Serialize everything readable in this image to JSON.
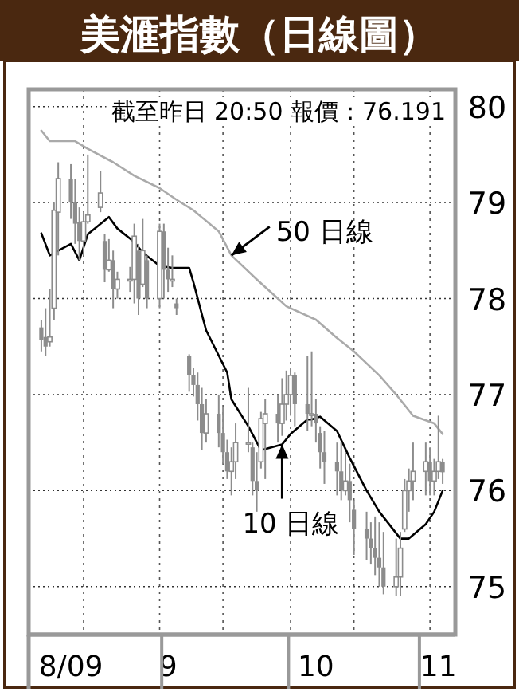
{
  "chart_data": {
    "type": "candlestick",
    "title": "美滙指數（日線圖）",
    "color": "#8c8c8c",
    "x": [
      "--08-03",
      "--08-04",
      "--08-05",
      "--08-06",
      "--08-07",
      "--08-10",
      "--08-11",
      "--08-12",
      "--08-13",
      "--08-14",
      "--08-17",
      "--08-18",
      "--08-19",
      "--08-20",
      "--08-21",
      "--08-24",
      "--08-25",
      "--08-26",
      "--08-27",
      "--08-28",
      "--08-31",
      "--09-01",
      "--09-02",
      "--09-03",
      "--09-04",
      "--09-07",
      "--09-08",
      "--09-09",
      "--09-10",
      "--09-11",
      "--09-14",
      "--09-15",
      "--09-16",
      "--09-17",
      "--09-18",
      "--09-21",
      "--09-22",
      "--09-23",
      "--09-24",
      "--09-25",
      "--09-28",
      "--09-29",
      "--09-30",
      "--10-01",
      "--10-02",
      "--10-05",
      "--10-06",
      "--10-07",
      "--10-08",
      "--10-09",
      "--10-12",
      "--10-13",
      "--10-14",
      "--10-15",
      "--10-16",
      "--10-19",
      "--10-20",
      "--10-21",
      "--10-22",
      "--10-23",
      "--10-26",
      "--10-27",
      "--10-28",
      "--10-29",
      "--10-30",
      "--11-02",
      "--11-03",
      "--11-04",
      "--11-05",
      "--11-06"
    ],
    "ohlc": [
      [
        77.7,
        77.78,
        77.45,
        77.57
      ],
      [
        77.6,
        77.9,
        77.4,
        77.5
      ],
      [
        77.55,
        78.1,
        77.5,
        77.6
      ],
      [
        77.9,
        79.0,
        77.78,
        78.92
      ],
      [
        78.9,
        79.42,
        78.45,
        79.25
      ],
      [
        79.25,
        79.4,
        78.83,
        79.0
      ],
      [
        79.0,
        79.25,
        78.57,
        78.78
      ],
      [
        78.8,
        78.95,
        78.4,
        78.6
      ],
      [
        78.6,
        78.9,
        78.45,
        78.8
      ],
      [
        78.8,
        79.5,
        78.78,
        78.87
      ],
      [
        78.95,
        79.33,
        78.9,
        79.1
      ],
      [
        78.6,
        78.67,
        78.17,
        78.3
      ],
      [
        78.3,
        78.62,
        78.28,
        78.4
      ],
      [
        78.4,
        78.5,
        77.9,
        78.1
      ],
      [
        78.1,
        78.28,
        78.0,
        78.2
      ],
      [
        78.2,
        78.33,
        78.07,
        78.2
      ],
      [
        78.2,
        78.78,
        77.95,
        78.65
      ],
      [
        78.5,
        78.57,
        77.83,
        78.0
      ],
      [
        78.15,
        78.83,
        78.12,
        78.5
      ],
      [
        78.4,
        78.45,
        77.9,
        78.0
      ],
      [
        78.0,
        78.78,
        77.9,
        78.7
      ],
      [
        78.7,
        78.78,
        78.0,
        78.3
      ],
      [
        78.3,
        78.53,
        78.07,
        78.2
      ],
      [
        78.2,
        78.45,
        78.12,
        78.2
      ],
      [
        77.95,
        78.0,
        77.83,
        77.9
      ],
      [
        77.4,
        77.42,
        77.03,
        77.2
      ],
      [
        77.2,
        77.28,
        76.98,
        77.1
      ],
      [
        77.1,
        77.23,
        76.73,
        76.9
      ],
      [
        76.9,
        77.07,
        76.42,
        76.6
      ],
      [
        76.6,
        76.95,
        76.5,
        76.8
      ],
      [
        76.8,
        77.0,
        76.45,
        76.6
      ],
      [
        76.6,
        76.87,
        76.28,
        76.4
      ],
      [
        76.4,
        76.53,
        76.12,
        76.2
      ],
      [
        76.2,
        76.45,
        75.95,
        76.3
      ],
      [
        76.3,
        76.7,
        76.12,
        76.5
      ],
      [
        76.5,
        77.07,
        76.4,
        76.5
      ],
      [
        76.45,
        76.5,
        75.95,
        76.1
      ],
      [
        76.1,
        76.4,
        75.78,
        76.0
      ],
      [
        76.3,
        76.82,
        76.23,
        76.75
      ],
      [
        76.7,
        76.95,
        76.12,
        76.8
      ],
      [
        76.8,
        77.0,
        76.5,
        76.7
      ],
      [
        76.7,
        77.17,
        76.57,
        76.9
      ],
      [
        76.9,
        77.25,
        76.73,
        77.0
      ],
      [
        77.0,
        77.28,
        76.78,
        77.2
      ],
      [
        77.2,
        77.23,
        76.67,
        76.9
      ],
      [
        76.9,
        77.4,
        76.62,
        76.8
      ],
      [
        76.8,
        77.45,
        76.67,
        76.8
      ],
      [
        76.8,
        76.95,
        76.5,
        76.7
      ],
      [
        76.6,
        76.67,
        76.23,
        76.4
      ],
      [
        76.4,
        76.62,
        76.07,
        76.3
      ],
      [
        76.3,
        76.5,
        75.95,
        76.2
      ],
      [
        76.2,
        76.5,
        75.9,
        76.0
      ],
      [
        76.0,
        76.4,
        75.95,
        76.1
      ],
      [
        76.1,
        76.28,
        75.67,
        75.9
      ],
      [
        75.8,
        75.9,
        75.33,
        75.6
      ],
      [
        75.6,
        75.78,
        75.28,
        75.5
      ],
      [
        75.5,
        75.67,
        75.23,
        75.4
      ],
      [
        75.4,
        75.73,
        75.12,
        75.3
      ],
      [
        75.3,
        75.67,
        75.0,
        75.2
      ],
      [
        75.2,
        75.57,
        74.92,
        75.0
      ],
      [
        75.0,
        75.5,
        74.9,
        75.1
      ],
      [
        75.1,
        75.57,
        74.9,
        75.4
      ],
      [
        75.6,
        76.12,
        75.57,
        76.0
      ],
      [
        76.0,
        76.23,
        75.78,
        76.1
      ],
      [
        76.1,
        76.5,
        75.9,
        76.2
      ],
      [
        76.2,
        76.5,
        75.95,
        76.3
      ],
      [
        76.3,
        76.45,
        75.95,
        76.1
      ],
      [
        76.1,
        76.33,
        75.95,
        76.2
      ],
      [
        76.2,
        76.78,
        76.12,
        76.3
      ],
      [
        76.3,
        76.33,
        76.07,
        76.191
      ]
    ],
    "series": [
      {
        "type": "line",
        "color": "#000000",
        "x": [
          "--08-03",
          "--08-05",
          "--08-07",
          "--08-10",
          "--08-12",
          "--08-14",
          "--08-19",
          "--08-21",
          "--08-25",
          "--08-27",
          "--08-31",
          "--09-03",
          "--09-07",
          "--09-08",
          "--09-11",
          "--09-16",
          "--09-17",
          "--09-21",
          "--09-24",
          "--09-29",
          "--10-01",
          "--10-05",
          "--10-06",
          "--10-08",
          "--10-12",
          "--10-15",
          "--10-19",
          "--10-22",
          "--10-27",
          "--10-29",
          "--11-02",
          "--11-04",
          "--11-06"
        ],
        "values": [
          78.68,
          78.45,
          78.5,
          78.57,
          78.4,
          78.67,
          78.85,
          78.73,
          78.59,
          78.48,
          78.34,
          78.32,
          78.32,
          78.17,
          77.67,
          77.23,
          76.95,
          76.67,
          76.42,
          76.48,
          76.59,
          76.74,
          76.74,
          76.77,
          76.62,
          76.34,
          76.0,
          75.78,
          75.5,
          75.5,
          75.65,
          75.78,
          76.0
        ]
      },
      {
        "type": "line",
        "color": "#aaaaaa",
        "x": [
          "--08-03",
          "--08-05",
          "--08-11",
          "--08-14",
          "--08-20",
          "--08-25",
          "--08-31",
          "--09-04",
          "--09-08",
          "--09-14",
          "--09-17",
          "--09-23",
          "--09-28",
          "--09-30",
          "--10-07",
          "--10-12",
          "--10-16",
          "--10-22",
          "--10-26",
          "--10-30",
          "--11-04",
          "--11-06"
        ],
        "values": [
          79.75,
          79.64,
          79.64,
          79.56,
          79.42,
          79.28,
          79.15,
          79.03,
          78.92,
          78.7,
          78.45,
          78.2,
          78.0,
          77.92,
          77.78,
          77.59,
          77.45,
          77.2,
          77.0,
          76.78,
          76.7,
          76.59
        ]
      }
    ],
    "annotations": [
      "截至昨日 20:50 報價：76.191",
      {
        "text": "50 日線",
        "x": "--09-17",
        "y": 78.45
      },
      {
        "text": "10 日線",
        "x": "--09-29",
        "y": 76.48
      }
    ],
    "xlim": [
      "--07-31",
      "--11-09"
    ],
    "xticks": [
      {
        "value": "--08-10",
        "label": "8/09"
      },
      {
        "value": "--09-02",
        "label": "9"
      },
      {
        "value": "--10-07",
        "label": "10"
      },
      {
        "value": "--11-05",
        "label": "11"
      },
      {
        "value": "--08-13",
        "label": null
      },
      {
        "value": "--08-31",
        "label": null
      },
      {
        "value": "--09-15",
        "label": null
      },
      {
        "value": "--10-01",
        "label": null
      },
      {
        "value": "--10-16",
        "label": null
      },
      {
        "value": "--11-03",
        "label": null
      }
    ],
    "ylim": [
      74.5,
      80.18
    ],
    "yticks": [
      75,
      76,
      77,
      78,
      79,
      80
    ],
    "grid": true
  }
}
